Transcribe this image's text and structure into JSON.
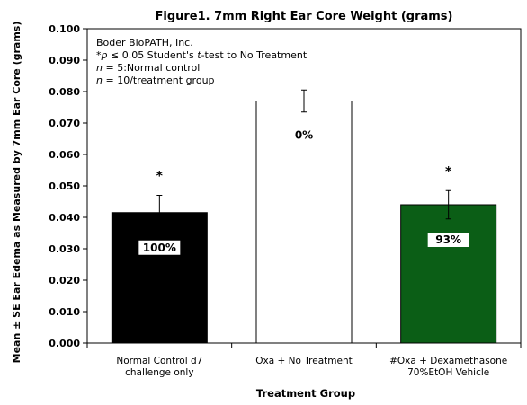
{
  "chart_data": {
    "type": "bar",
    "title": "Figure1. 7mm Right Ear Core Weight (grams)",
    "xlabel": "Treatment Group",
    "ylabel": "Mean ± SE Ear Edema as Measured by 7mm Ear Core (grams)",
    "ylim": [
      0,
      0.1
    ],
    "yticks": [
      "0.000",
      "0.010",
      "0.020",
      "0.030",
      "0.040",
      "0.050",
      "0.060",
      "0.070",
      "0.080",
      "0.090",
      "0.100"
    ],
    "categories": [
      [
        "Normal Control d7",
        "challenge only"
      ],
      [
        "Oxa + No Treatment"
      ],
      [
        "#Oxa + Dexamethasone",
        "70%EtOH Vehicle"
      ]
    ],
    "values": [
      0.0415,
      0.077,
      0.044
    ],
    "errors": [
      0.0055,
      0.0035,
      0.0045
    ],
    "bar_colors": [
      "#000000",
      "#ffffff",
      "#0b5e16"
    ],
    "bar_labels": [
      "100%",
      "0%",
      "93%"
    ],
    "significance": [
      "*",
      "",
      "*"
    ],
    "annotations": [
      {
        "parts": [
          {
            "t": "Boder BioPATH, Inc."
          }
        ]
      },
      {
        "parts": [
          {
            "t": "*",
            "i": false
          },
          {
            "t": "p",
            "i": true
          },
          {
            "t": " ≤ 0.05 Student's ",
            "i": false
          },
          {
            "t": "t",
            "i": true
          },
          {
            "t": "-test to No Treatment",
            "i": false
          }
        ]
      },
      {
        "parts": [
          {
            "t": "n",
            "i": true
          },
          {
            "t": " = 5:Normal control",
            "i": false
          }
        ]
      },
      {
        "parts": [
          {
            "t": "n",
            "i": true
          },
          {
            "t": " = 10/treatment group",
            "i": false
          }
        ]
      }
    ],
    "grid": false,
    "legend": "none"
  }
}
